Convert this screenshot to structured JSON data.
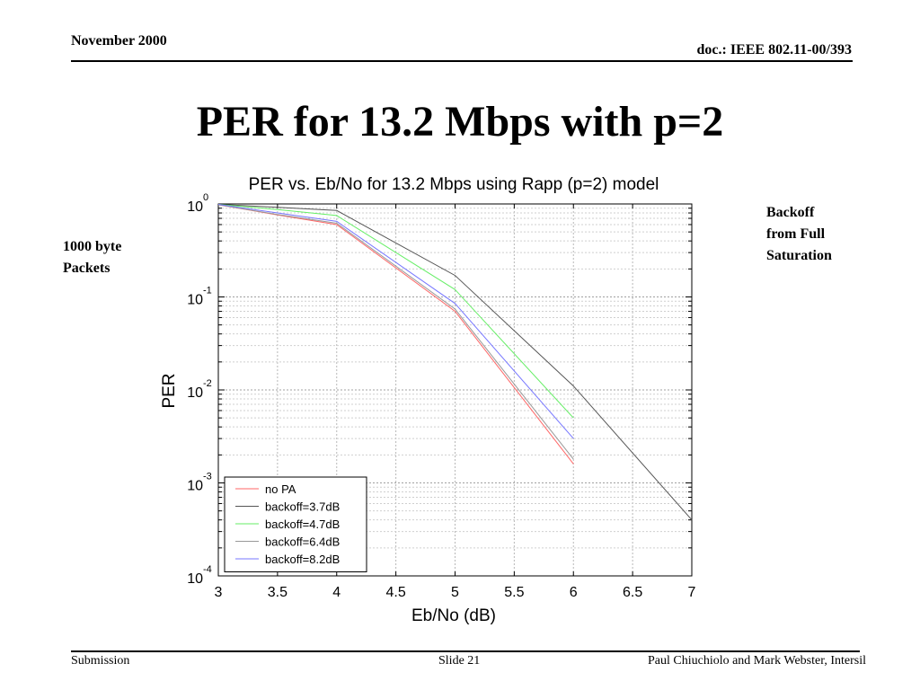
{
  "header": {
    "date": "November 2000",
    "doc_id": "doc.: IEEE 802.11-00/393"
  },
  "slide_title": "PER for 13.2 Mbps with p=2",
  "notes": {
    "left_line1": "1000 byte",
    "left_line2": "Packets",
    "right_line1": "Backoff",
    "right_line2": "from Full",
    "right_line3": "Saturation"
  },
  "footer": {
    "left": "Submission",
    "center": "Slide 21",
    "right": "Paul Chiuchiolo and Mark Webster, Intersil"
  },
  "chart_data": {
    "type": "line",
    "title": "PER vs. Eb/No for 13.2 Mbps using Rapp (p=2) model",
    "xlabel": "Eb/No (dB)",
    "ylabel": "PER",
    "xlim": [
      3,
      7
    ],
    "ylim": [
      0.0001,
      1
    ],
    "yscale": "log",
    "grid": true,
    "legend": "bottom-left",
    "xticks": [
      "3",
      "3.5",
      "4",
      "4.5",
      "5",
      "5.5",
      "6",
      "6.5",
      "7"
    ],
    "yticks": [
      {
        "base": "10",
        "exp": "0"
      },
      {
        "base": "10",
        "exp": "-1"
      },
      {
        "base": "10",
        "exp": "-2"
      },
      {
        "base": "10",
        "exp": "-3"
      },
      {
        "base": "10",
        "exp": "-4"
      }
    ],
    "series": [
      {
        "name": "no PA",
        "color": "#ff6666",
        "x": [
          3,
          3.5,
          4,
          5,
          6
        ],
        "y": [
          0.98,
          0.76,
          0.6,
          0.07,
          0.0016
        ]
      },
      {
        "name": "backoff=3.7dB",
        "color": "#555555",
        "x": [
          3,
          3.5,
          4,
          5,
          6,
          7
        ],
        "y": [
          0.99,
          0.92,
          0.85,
          0.17,
          0.011,
          0.0004
        ]
      },
      {
        "name": "backoff=4.7dB",
        "color": "#66ee66",
        "x": [
          3,
          3.5,
          4,
          5,
          6
        ],
        "y": [
          0.99,
          0.87,
          0.75,
          0.12,
          0.005
        ]
      },
      {
        "name": "backoff=6.4dB",
        "color": "#999999",
        "x": [
          3,
          3.5,
          4,
          5,
          6
        ],
        "y": [
          0.98,
          0.77,
          0.62,
          0.074,
          0.0018
        ]
      },
      {
        "name": "backoff=8.2dB",
        "color": "#7777ff",
        "x": [
          3,
          3.5,
          4,
          5,
          6
        ],
        "y": [
          0.99,
          0.8,
          0.65,
          0.085,
          0.003
        ]
      }
    ]
  }
}
